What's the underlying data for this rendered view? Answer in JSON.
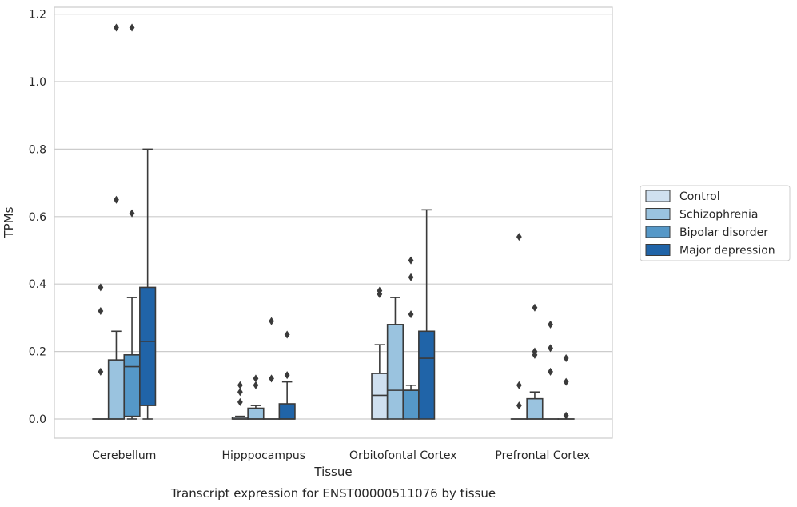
{
  "chart_data": {
    "type": "box",
    "title": "",
    "caption": "Transcript expression for ENST00000511076 by tissue",
    "xlabel": "Tissue",
    "ylabel": "TPMs",
    "ylim": [
      -0.057,
      1.222
    ],
    "yticks": [
      0.0,
      0.2,
      0.4,
      0.6,
      0.8,
      1.0,
      1.2
    ],
    "ytick_labels": [
      "0.0",
      "0.2",
      "0.4",
      "0.6",
      "0.8",
      "1.0",
      "1.2"
    ],
    "grid": "horizontal",
    "legend_position": "right",
    "categories": [
      "Cerebellum",
      "Hipppocampus",
      "Orbitofontal Cortex",
      "Prefrontal Cortex"
    ],
    "series": [
      {
        "name": "Control",
        "color": "#cfe0f0",
        "boxes": [
          {
            "q1": 0.0,
            "median": 0.0,
            "q3": 0.0,
            "whislo": 0.0,
            "whishi": 0.0,
            "fliers": [
              0.39,
              0.32,
              0.14
            ]
          },
          {
            "q1": 0.0,
            "median": 0.0,
            "q3": 0.005,
            "whislo": 0.0,
            "whishi": 0.008,
            "fliers": [
              0.1,
              0.08,
              0.05
            ]
          },
          {
            "q1": 0.0,
            "median": 0.07,
            "q3": 0.135,
            "whislo": 0.0,
            "whishi": 0.22,
            "fliers": [
              0.38,
              0.37
            ]
          },
          {
            "q1": 0.0,
            "median": 0.0,
            "q3": 0.0,
            "whislo": 0.0,
            "whishi": 0.0,
            "fliers": [
              0.54,
              0.1,
              0.04
            ]
          }
        ]
      },
      {
        "name": "Schizophrenia",
        "color": "#9ac3df",
        "boxes": [
          {
            "q1": 0.0,
            "median": 0.0,
            "q3": 0.175,
            "whislo": 0.0,
            "whishi": 0.26,
            "fliers": [
              1.16,
              0.65
            ]
          },
          {
            "q1": 0.0,
            "median": 0.0,
            "q3": 0.032,
            "whislo": 0.0,
            "whishi": 0.04,
            "fliers": [
              0.12,
              0.1
            ]
          },
          {
            "q1": 0.0,
            "median": 0.085,
            "q3": 0.28,
            "whislo": 0.0,
            "whishi": 0.36,
            "fliers": []
          },
          {
            "q1": 0.0,
            "median": 0.0,
            "q3": 0.06,
            "whislo": 0.0,
            "whishi": 0.08,
            "fliers": [
              0.33,
              0.2,
              0.19
            ]
          }
        ]
      },
      {
        "name": "Bipolar disorder",
        "color": "#5598c8",
        "boxes": [
          {
            "q1": 0.008,
            "median": 0.155,
            "q3": 0.19,
            "whislo": 0.0,
            "whishi": 0.36,
            "fliers": [
              1.16,
              0.61
            ]
          },
          {
            "q1": 0.0,
            "median": 0.0,
            "q3": 0.0,
            "whislo": 0.0,
            "whishi": 0.0,
            "fliers": [
              0.29,
              0.12
            ]
          },
          {
            "q1": 0.0,
            "median": 0.085,
            "q3": 0.085,
            "whislo": 0.0,
            "whishi": 0.1,
            "fliers": [
              0.47,
              0.42,
              0.31
            ]
          },
          {
            "q1": 0.0,
            "median": 0.0,
            "q3": 0.0,
            "whislo": 0.0,
            "whishi": 0.0,
            "fliers": [
              0.28,
              0.21,
              0.14
            ]
          }
        ]
      },
      {
        "name": "Major depression",
        "color": "#2064a8",
        "boxes": [
          {
            "q1": 0.04,
            "median": 0.23,
            "q3": 0.39,
            "whislo": 0.0,
            "whishi": 0.8,
            "fliers": []
          },
          {
            "q1": 0.0,
            "median": 0.0,
            "q3": 0.045,
            "whislo": 0.0,
            "whishi": 0.11,
            "fliers": [
              0.25,
              0.13
            ]
          },
          {
            "q1": 0.0,
            "median": 0.18,
            "q3": 0.26,
            "whislo": 0.0,
            "whishi": 0.62,
            "fliers": []
          },
          {
            "q1": 0.0,
            "median": 0.0,
            "q3": 0.0,
            "whislo": 0.0,
            "whishi": 0.0,
            "fliers": [
              0.18,
              0.11,
              0.01
            ]
          }
        ]
      }
    ]
  }
}
